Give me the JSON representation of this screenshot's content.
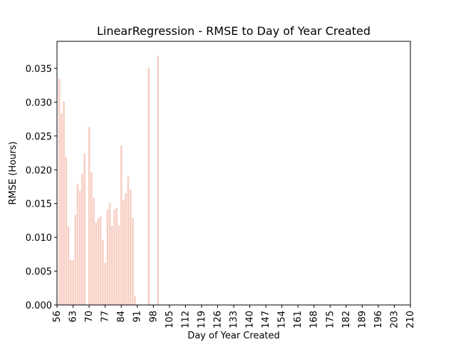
{
  "chart_data": {
    "type": "bar",
    "title": "LinearRegression - RMSE to Day of Year Created",
    "xlabel": "Day of Year Created",
    "ylabel": "RMSE (Hours)",
    "xlim": [
      56,
      210
    ],
    "ylim": [
      0,
      0.039
    ],
    "x_ticks": [
      56,
      63,
      70,
      77,
      84,
      91,
      98,
      105,
      112,
      119,
      126,
      133,
      140,
      147,
      154,
      161,
      168,
      175,
      182,
      189,
      196,
      203,
      210
    ],
    "y_ticks": [
      0.0,
      0.005,
      0.01,
      0.015,
      0.02,
      0.025,
      0.03,
      0.035
    ],
    "y_tick_labels": [
      "0.000",
      "0.005",
      "0.010",
      "0.015",
      "0.020",
      "0.025",
      "0.030",
      "0.035"
    ],
    "bar_color": "#f8cfc4",
    "points": [
      {
        "x": 57,
        "y": 0.0335
      },
      {
        "x": 58,
        "y": 0.0283
      },
      {
        "x": 59,
        "y": 0.0301
      },
      {
        "x": 60,
        "y": 0.0219
      },
      {
        "x": 61,
        "y": 0.0116
      },
      {
        "x": 62,
        "y": 0.0067
      },
      {
        "x": 63,
        "y": 0.0066
      },
      {
        "x": 64,
        "y": 0.0133
      },
      {
        "x": 65,
        "y": 0.0179
      },
      {
        "x": 66,
        "y": 0.0169
      },
      {
        "x": 67,
        "y": 0.0194
      },
      {
        "x": 68,
        "y": 0.0224
      },
      {
        "x": 70,
        "y": 0.0263
      },
      {
        "x": 71,
        "y": 0.0196
      },
      {
        "x": 72,
        "y": 0.0159
      },
      {
        "x": 73,
        "y": 0.0122
      },
      {
        "x": 74,
        "y": 0.0128
      },
      {
        "x": 75,
        "y": 0.0131
      },
      {
        "x": 76,
        "y": 0.0096
      },
      {
        "x": 77,
        "y": 0.0062
      },
      {
        "x": 78,
        "y": 0.0141
      },
      {
        "x": 79,
        "y": 0.0151
      },
      {
        "x": 80,
        "y": 0.0117
      },
      {
        "x": 81,
        "y": 0.0141
      },
      {
        "x": 82,
        "y": 0.0144
      },
      {
        "x": 83,
        "y": 0.0118
      },
      {
        "x": 84,
        "y": 0.0236
      },
      {
        "x": 85,
        "y": 0.0155
      },
      {
        "x": 86,
        "y": 0.0165
      },
      {
        "x": 87,
        "y": 0.019
      },
      {
        "x": 88,
        "y": 0.0171
      },
      {
        "x": 89,
        "y": 0.0129
      },
      {
        "x": 90,
        "y": 0.0013
      },
      {
        "x": 96,
        "y": 0.0351
      },
      {
        "x": 100,
        "y": 0.0369
      }
    ]
  }
}
